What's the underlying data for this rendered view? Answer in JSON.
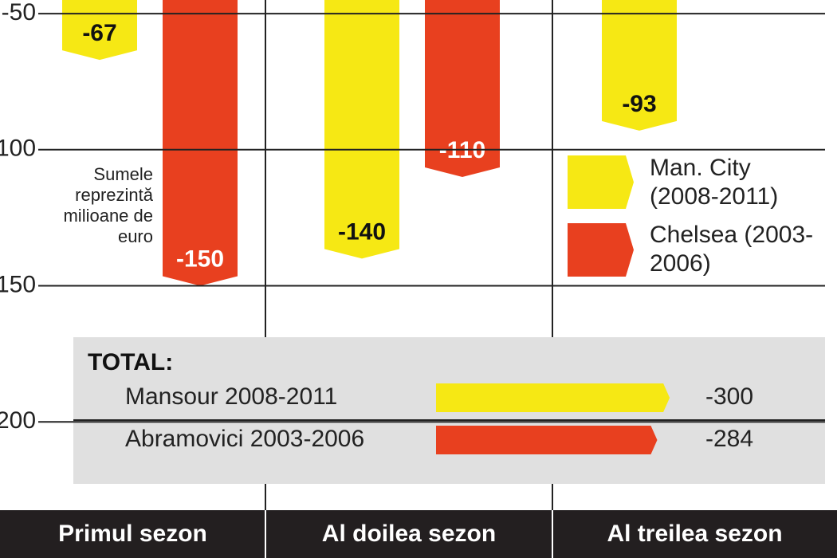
{
  "chart_data": {
    "type": "bar",
    "categories": [
      "Primul sezon",
      "Al doilea sezon",
      "Al treilea sezon"
    ],
    "series": [
      {
        "name": "Man. City (2008-2011)",
        "color": "#f6e814",
        "values": [
          -67,
          -140,
          -93
        ]
      },
      {
        "name": "Chelsea (2003-2006)",
        "color": "#e8401f",
        "values": [
          -150,
          -110,
          null
        ]
      }
    ],
    "ylim": [
      -45,
      -250
    ],
    "yticks": [
      -50,
      -100,
      -150,
      -200
    ],
    "grid": true,
    "annotation": "Sumele reprezintă milioane de euro",
    "totals": {
      "title": "TOTAL:",
      "rows": [
        {
          "name": "Mansour 2008-2011",
          "value": -300
        },
        {
          "name": "Abramovici 2003-2006",
          "value": -284
        }
      ]
    }
  }
}
